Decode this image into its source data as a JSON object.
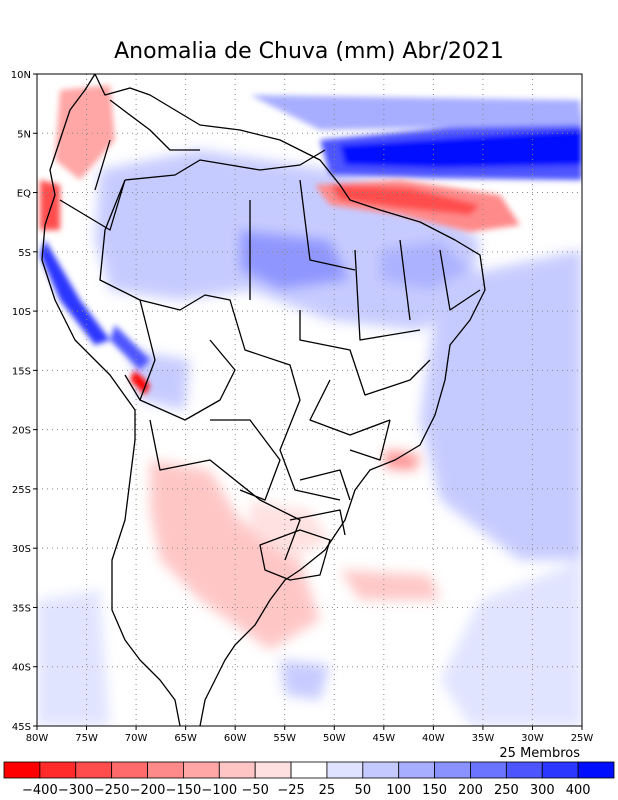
{
  "title": "Anomalia de Chuva (mm) Abr/2021",
  "map": {
    "lat_labels": [
      "10N",
      "5N",
      "EQ",
      "5S",
      "10S",
      "15S",
      "20S",
      "25S",
      "30S",
      "35S",
      "40S",
      "45S"
    ],
    "lon_labels": [
      "80W",
      "75W",
      "70W",
      "65W",
      "60W",
      "55W",
      "50W",
      "45W",
      "40W",
      "35W",
      "30W",
      "25W"
    ],
    "lon_range": [
      -80,
      -25
    ],
    "lat_range": [
      -45,
      10
    ]
  },
  "members_label": "25 Membros",
  "colorbar": {
    "labels": [
      "−400",
      "−300",
      "−250",
      "−200",
      "−150",
      "−100",
      "−50",
      "−25",
      "25",
      "50",
      "100",
      "150",
      "200",
      "250",
      "300",
      "400"
    ],
    "colors": [
      "#ff0000",
      "#ff2b2b",
      "#ff4d4d",
      "#ff6b6b",
      "#ff8a8a",
      "#ffa6a6",
      "#ffc4c4",
      "#ffe0e0",
      "#ffffff",
      "#e0e3ff",
      "#c4c9ff",
      "#a8aeff",
      "#8a92ff",
      "#6b74ff",
      "#4d55ff",
      "#2b36ff",
      "#0010ff"
    ]
  }
}
